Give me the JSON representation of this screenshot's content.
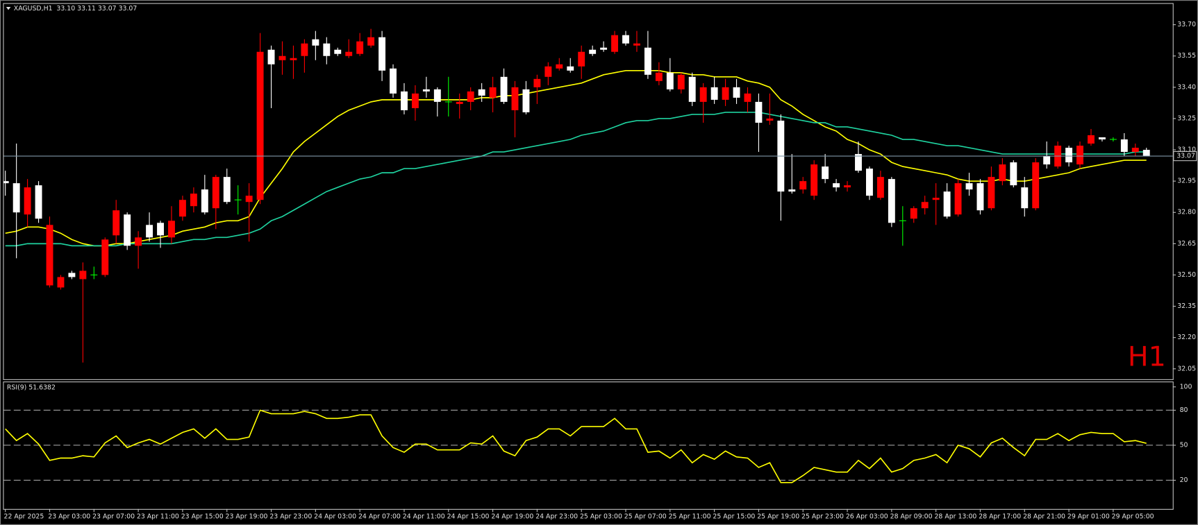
{
  "chart_data": [
    {
      "type": "candlestick",
      "title": "XAGUSD,H1",
      "subtitle": "33.10 33.11 33.07 33.07",
      "watermark": "H1",
      "categories": [
        "22 Apr 2025",
        null,
        null,
        null,
        "23 Apr 03:00",
        null,
        null,
        null,
        "23 Apr 07:00",
        null,
        null,
        null,
        "23 Apr 11:00",
        null,
        null,
        null,
        "23 Apr 15:00",
        null,
        null,
        null,
        "23 Apr 19:00",
        null,
        null,
        null,
        "23 Apr 23:00",
        null,
        null,
        null,
        "24 Apr 03:00",
        null,
        null,
        null,
        "24 Apr 07:00",
        null,
        null,
        null,
        "24 Apr 11:00",
        null,
        null,
        null,
        "24 Apr 15:00",
        null,
        null,
        null,
        "24 Apr 19:00",
        null,
        null,
        null,
        "24 Apr 23:00",
        null,
        null,
        null,
        "25 Apr 03:00",
        null,
        null,
        null,
        "25 Apr 07:00",
        null,
        null,
        null,
        "25 Apr 11:00",
        null,
        null,
        null,
        "25 Apr 15:00",
        null,
        null,
        null,
        "25 Apr 19:00",
        null,
        null,
        null,
        "25 Apr 23:00",
        null,
        null,
        null,
        "26 Apr 03:00",
        null,
        null,
        null,
        "28 Apr 09:00",
        null,
        null,
        null,
        "28 Apr 13:00",
        null,
        null,
        null,
        "28 Apr 17:00",
        null,
        null,
        null,
        "28 Apr 21:00",
        null,
        null,
        null,
        "29 Apr 01:00",
        null,
        null,
        null,
        "29 Apr 05:00",
        null,
        null,
        null
      ],
      "open": [
        32.95,
        32.94,
        32.79,
        32.93,
        32.45,
        32.44,
        32.51,
        32.48,
        32.5,
        32.5,
        32.69,
        32.79,
        32.64,
        32.74,
        32.75,
        32.68,
        32.78,
        32.83,
        32.91,
        32.82,
        32.97,
        32.86,
        32.85,
        32.86,
        33.58,
        33.53,
        33.53,
        33.55,
        33.63,
        33.61,
        33.58,
        33.55,
        33.56,
        33.6,
        33.64,
        33.49,
        33.38,
        33.3,
        33.39,
        33.39,
        33.33,
        33.32,
        33.33,
        33.39,
        33.35,
        33.45,
        33.29,
        33.39,
        33.4,
        33.45,
        33.49,
        33.5,
        33.5,
        33.58,
        33.59,
        33.57,
        33.65,
        33.6,
        33.59,
        33.43,
        33.47,
        33.39,
        33.45,
        33.33,
        33.4,
        33.34,
        33.4,
        33.33,
        33.33,
        33.24,
        33.24,
        32.91,
        32.91,
        32.88,
        33.02,
        32.94,
        32.92,
        33.08,
        33.01,
        32.87,
        32.96,
        32.76,
        32.77,
        32.82,
        32.86,
        32.9,
        32.79,
        32.94,
        32.94,
        32.82,
        32.95,
        33.04,
        32.92,
        32.82,
        33.07,
        33.02,
        33.11,
        33.03,
        33.13,
        33.16,
        33.15,
        33.15,
        33.09,
        33.1
      ],
      "high": [
        33.0,
        33.13,
        32.96,
        32.95,
        32.78,
        32.5,
        32.52,
        32.56,
        32.54,
        32.68,
        32.86,
        32.8,
        32.71,
        32.8,
        32.76,
        32.83,
        32.88,
        32.92,
        32.98,
        32.98,
        33.01,
        32.93,
        32.94,
        33.66,
        33.6,
        33.62,
        33.6,
        33.63,
        33.67,
        33.64,
        33.59,
        33.63,
        33.66,
        33.68,
        33.67,
        33.51,
        33.42,
        33.41,
        33.45,
        33.4,
        33.45,
        33.37,
        33.4,
        33.42,
        33.45,
        33.49,
        33.43,
        33.43,
        33.46,
        33.52,
        33.54,
        33.54,
        33.6,
        33.6,
        33.62,
        33.67,
        33.67,
        33.67,
        33.67,
        33.52,
        33.54,
        33.47,
        33.47,
        33.42,
        33.45,
        33.44,
        33.44,
        33.4,
        33.37,
        33.37,
        33.27,
        33.08,
        32.97,
        33.05,
        33.08,
        32.96,
        32.95,
        33.14,
        33.02,
        33.0,
        32.97,
        32.83,
        32.83,
        32.88,
        32.94,
        32.94,
        32.96,
        32.99,
        32.96,
        33.02,
        33.06,
        33.05,
        32.97,
        33.06,
        33.14,
        33.14,
        33.12,
        33.14,
        33.2,
        33.16,
        33.16,
        33.18,
        33.13,
        33.11
      ],
      "low": [
        32.88,
        32.58,
        32.73,
        32.75,
        32.44,
        32.43,
        32.48,
        32.08,
        32.48,
        32.49,
        32.65,
        32.62,
        32.53,
        32.66,
        32.63,
        32.65,
        32.76,
        32.8,
        32.79,
        32.72,
        32.84,
        32.79,
        32.66,
        32.84,
        33.3,
        33.46,
        33.44,
        33.47,
        33.53,
        33.51,
        33.55,
        33.54,
        33.55,
        33.59,
        33.43,
        33.35,
        33.27,
        33.24,
        33.35,
        33.26,
        33.26,
        33.25,
        33.29,
        33.33,
        33.28,
        33.32,
        33.16,
        33.27,
        33.32,
        33.41,
        33.48,
        33.47,
        33.44,
        33.55,
        33.57,
        33.56,
        33.6,
        33.57,
        33.44,
        33.41,
        33.38,
        33.37,
        33.31,
        33.23,
        33.32,
        33.31,
        33.32,
        33.28,
        33.09,
        33.22,
        32.76,
        32.89,
        32.89,
        32.86,
        32.94,
        32.9,
        32.9,
        32.99,
        32.86,
        32.86,
        32.73,
        32.64,
        32.75,
        32.79,
        32.74,
        32.77,
        32.78,
        32.88,
        32.79,
        32.81,
        32.93,
        32.92,
        32.78,
        32.81,
        33.01,
        33.01,
        33.02,
        33.01,
        33.12,
        33.14,
        33.14,
        33.07,
        33.07,
        33.07
      ],
      "close": [
        32.94,
        32.8,
        32.92,
        32.77,
        32.74,
        32.49,
        32.49,
        32.52,
        32.5,
        32.67,
        32.81,
        32.64,
        32.68,
        32.68,
        32.69,
        32.76,
        32.86,
        32.89,
        32.8,
        32.97,
        32.85,
        32.86,
        32.88,
        33.57,
        33.51,
        33.55,
        33.54,
        33.61,
        33.6,
        33.55,
        33.56,
        33.57,
        33.62,
        33.64,
        33.48,
        33.37,
        33.29,
        33.37,
        33.38,
        33.33,
        33.33,
        33.33,
        33.38,
        33.36,
        33.4,
        33.33,
        33.4,
        33.28,
        33.44,
        33.5,
        33.51,
        33.48,
        33.57,
        33.56,
        33.58,
        33.65,
        33.61,
        33.61,
        33.46,
        33.47,
        33.39,
        33.46,
        33.33,
        33.4,
        33.34,
        33.4,
        33.35,
        33.37,
        33.23,
        33.25,
        32.9,
        32.9,
        32.95,
        33.03,
        32.96,
        32.92,
        32.93,
        33.0,
        32.88,
        32.97,
        32.75,
        32.76,
        32.82,
        32.85,
        32.87,
        32.78,
        32.94,
        32.91,
        32.81,
        32.97,
        33.03,
        32.93,
        32.82,
        33.04,
        33.03,
        33.12,
        33.04,
        33.12,
        33.17,
        33.15,
        33.15,
        33.09,
        33.11,
        33.07
      ],
      "up_color": "#ff0000",
      "down_color": "#ffffff",
      "doji_color": "#00ff00",
      "series": [
        {
          "color": "#ffff00",
          "values": [
            32.7,
            32.71,
            32.73,
            32.73,
            32.72,
            32.7,
            32.67,
            32.65,
            32.64,
            32.64,
            32.65,
            32.65,
            32.66,
            32.67,
            32.68,
            32.69,
            32.71,
            32.72,
            32.73,
            32.75,
            32.76,
            32.76,
            32.78,
            32.87,
            32.94,
            33.01,
            33.09,
            33.14,
            33.18,
            33.22,
            33.26,
            33.29,
            33.31,
            33.33,
            33.34,
            33.34,
            33.34,
            33.34,
            33.34,
            33.34,
            33.34,
            33.34,
            33.34,
            33.35,
            33.35,
            33.36,
            33.36,
            33.37,
            33.38,
            33.39,
            33.4,
            33.41,
            33.42,
            33.44,
            33.46,
            33.47,
            33.48,
            33.48,
            33.48,
            33.48,
            33.47,
            33.47,
            33.46,
            33.46,
            33.45,
            33.45,
            33.45,
            33.43,
            33.42,
            33.4,
            33.34,
            33.31,
            33.27,
            33.24,
            33.21,
            33.19,
            33.15,
            33.13,
            33.1,
            33.08,
            33.04,
            33.02,
            33.01,
            33.0,
            32.99,
            32.98,
            32.96,
            32.95,
            32.95,
            32.95,
            32.96,
            32.95,
            32.95,
            32.96,
            32.97,
            32.98,
            32.99,
            33.01,
            33.02,
            33.03,
            33.04,
            33.05,
            33.05,
            33.05
          ]
        },
        {
          "color": "#1fd3a0",
          "values": [
            32.64,
            32.64,
            32.65,
            32.65,
            32.65,
            32.65,
            32.64,
            32.64,
            32.64,
            32.64,
            32.64,
            32.65,
            32.65,
            32.65,
            32.65,
            32.65,
            32.66,
            32.67,
            32.67,
            32.68,
            32.68,
            32.69,
            32.7,
            32.72,
            32.76,
            32.78,
            32.81,
            32.84,
            32.87,
            32.9,
            32.92,
            32.94,
            32.96,
            32.97,
            32.99,
            32.99,
            33.01,
            33.01,
            33.02,
            33.03,
            33.04,
            33.05,
            33.06,
            33.07,
            33.09,
            33.09,
            33.1,
            33.11,
            33.12,
            33.13,
            33.14,
            33.15,
            33.17,
            33.18,
            33.19,
            33.21,
            33.23,
            33.24,
            33.24,
            33.25,
            33.25,
            33.26,
            33.27,
            33.27,
            33.27,
            33.28,
            33.28,
            33.28,
            33.28,
            33.27,
            33.26,
            33.25,
            33.24,
            33.23,
            33.23,
            33.21,
            33.21,
            33.2,
            33.19,
            33.18,
            33.17,
            33.15,
            33.15,
            33.14,
            33.13,
            33.12,
            33.12,
            33.11,
            33.1,
            33.09,
            33.08,
            33.08,
            33.08,
            33.08,
            33.08,
            33.08,
            33.08,
            33.08,
            33.08,
            33.08,
            33.08,
            33.08,
            33.09,
            33.09
          ]
        }
      ],
      "last_price": 33.07,
      "last_price_color": "#7f98a8",
      "ylim": [
        32.0,
        33.8
      ],
      "yticks": [
        {
          "value": 33.7,
          "label": "33.70"
        },
        33.55,
        {
          "value": 33.4,
          "label": "33.40"
        },
        33.25,
        {
          "value": 33.1,
          "label": "33.10"
        },
        32.95,
        {
          "value": 32.8,
          "label": "32.80"
        },
        32.65,
        {
          "value": 32.5,
          "label": "32.50"
        },
        32.35,
        {
          "value": 32.2,
          "label": "32.20"
        },
        32.05
      ]
    },
    {
      "type": "line",
      "title": "RSI(9) 51.6382",
      "series": [
        {
          "color": "#ffff00",
          "values": [
            64,
            54,
            60,
            51,
            37,
            39,
            39,
            41,
            40,
            52,
            58,
            48,
            52,
            55,
            51,
            56,
            61,
            64,
            56,
            64,
            55,
            55,
            57,
            80,
            77,
            77,
            77,
            79,
            77,
            73,
            73,
            74,
            76,
            76,
            58,
            48,
            44,
            51,
            51,
            46,
            46,
            46,
            52,
            51,
            58,
            45,
            41,
            54,
            57,
            64,
            64,
            58,
            66,
            66,
            66,
            73,
            64,
            64,
            44,
            45,
            39,
            46,
            35,
            42,
            38,
            45,
            40,
            39,
            31,
            35,
            18,
            18,
            24,
            31,
            29,
            27,
            27,
            37,
            30,
            39,
            27,
            30,
            37,
            39,
            42,
            35,
            50,
            47,
            40,
            52,
            56,
            48,
            41,
            55,
            55,
            60,
            54,
            59,
            61,
            60,
            60,
            53,
            54,
            51.6382
          ]
        }
      ],
      "ylim": [
        0,
        100
      ],
      "yticks": [
        100,
        80,
        50,
        20
      ]
    }
  ]
}
